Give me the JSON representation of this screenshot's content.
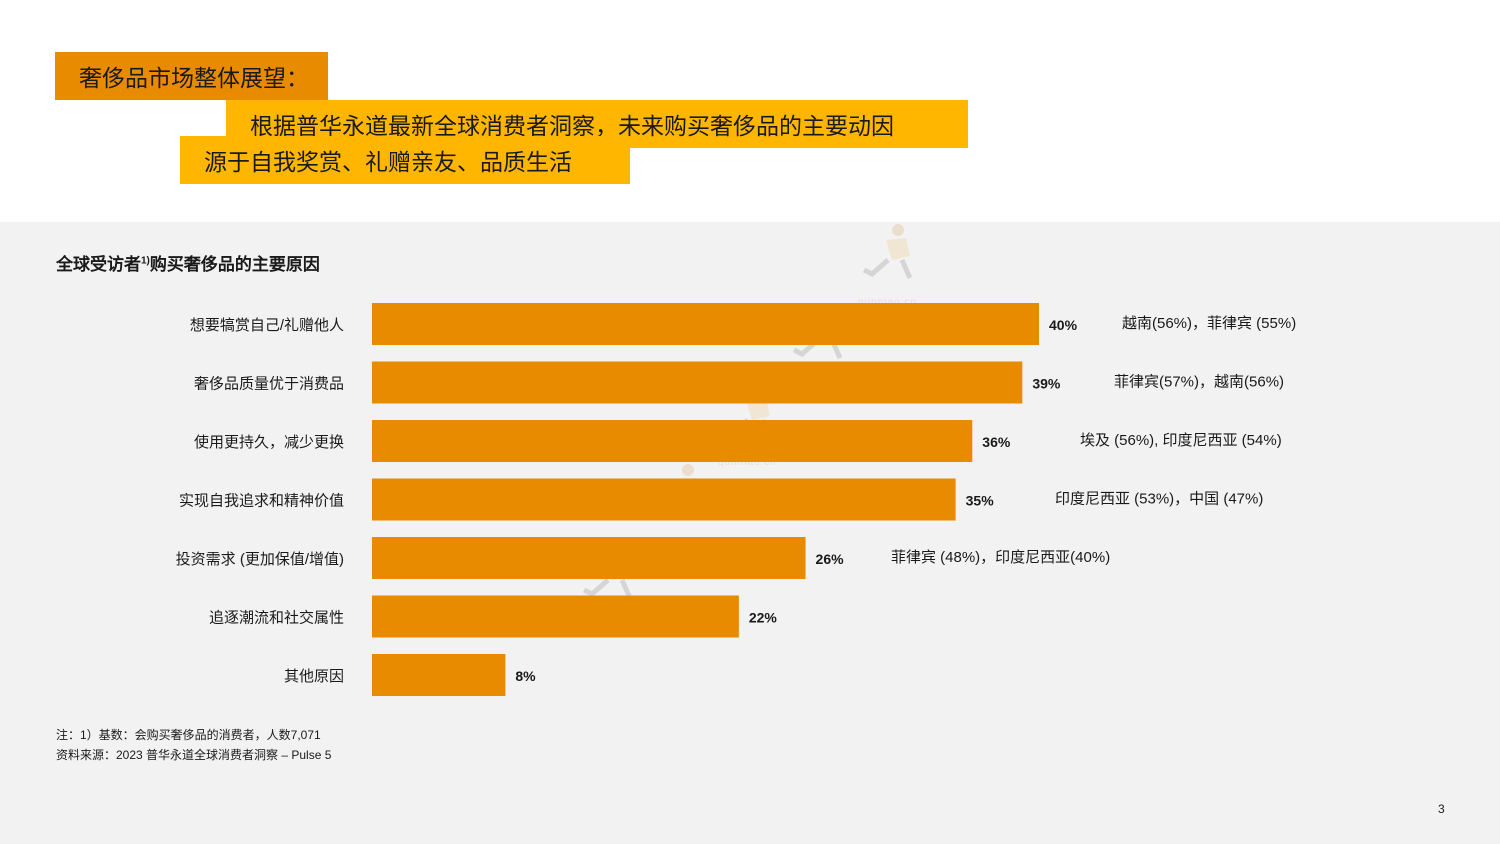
{
  "header": {
    "title": "奢侈品市场整体展望：",
    "subtitle_line1": "根据普华永道最新全球消费者洞察，未来购买奢侈品的主要动因",
    "subtitle_line2": "源于自我奖赏、礼赠亲友、品质生活"
  },
  "chart_title": {
    "text": "全球受访者",
    "sup": "1)",
    "suffix": "购买奢侈品的主要原因"
  },
  "watermark": "qunniao.cn",
  "notes": {
    "line1": "注：1）基数：会购买奢侈品的消费者，人数7,071",
    "line2": "资料来源：2023 普华永道全球消费者洞察 – Pulse 5"
  },
  "page_number": "3",
  "colors": {
    "bar": "#e88b00",
    "title_box": "#e88b00",
    "subtitle_box": "#ffb600",
    "panel": "#f2f2f2"
  },
  "chart_data": {
    "type": "bar",
    "orientation": "horizontal",
    "categories": [
      "想要犒赏自己/礼赠他人",
      "奢侈品质量优于消费品",
      "使用更持久，减少更换",
      "实现自我追求和精神价值",
      "投资需求 (更加保值/增值)",
      "追逐潮流和社交属性",
      "其他原因"
    ],
    "values": [
      40,
      39,
      36,
      35,
      26,
      22,
      8
    ],
    "value_labels": [
      "40%",
      "39%",
      "36%",
      "35%",
      "26%",
      "22%",
      "8%"
    ],
    "annotations": [
      "越南(56%)，菲律宾 (55%)",
      "菲律宾(57%)，越南(56%)",
      "埃及 (56%), 印度尼西亚 (54%)",
      "印度尼西亚 (53%)，中国 (47%)",
      "菲律宾 (48%)，印度尼西亚(40%)",
      "",
      ""
    ],
    "xlim": [
      0,
      40
    ],
    "grid": false,
    "legend": "none"
  }
}
